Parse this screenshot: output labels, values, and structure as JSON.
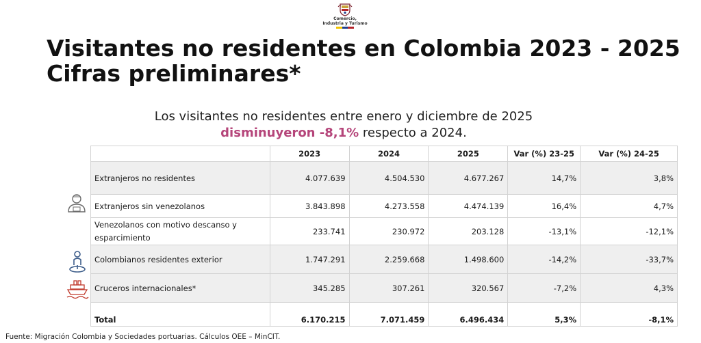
{
  "logo": {
    "line1": "Comercio,",
    "line2": "Industria y Turismo",
    "colors": {
      "red": "#b4232a",
      "yellow": "#f1c400",
      "blue": "#1d3f8f"
    }
  },
  "title": {
    "line1": "Visitantes no residentes en Colombia 2023 - 2025",
    "line2": "Cifras preliminares*"
  },
  "subtitle": {
    "line1": "Los visitantes no residentes entre enero y diciembre de 2025",
    "highlight": "disminuyeron -8,1%",
    "rest": " respecto a 2024.",
    "highlight_color": "#b5457a"
  },
  "table": {
    "headers": [
      "",
      "2023",
      "2024",
      "2025",
      "Var (%) 23-25",
      "Var (%) 24-25"
    ],
    "rows": [
      {
        "label": "Extranjeros no residentes",
        "values": [
          "4.077.639",
          "4.504.530",
          "4.677.267",
          "14,7%",
          "3,8%"
        ]
      },
      {
        "label": "Extranjeros sin venezolanos",
        "values": [
          "3.843.898",
          "4.273.558",
          "4.474.139",
          "16,4%",
          "4,7%"
        ]
      },
      {
        "label": "Venezolanos con motivo descanso y esparcimiento",
        "values": [
          "233.741",
          "230.972",
          "203.128",
          "-13,1%",
          "-12,1%"
        ]
      },
      {
        "label": "Colombianos residentes exterior",
        "values": [
          "1.747.291",
          "2.259.668",
          "1.498.600",
          "-14,2%",
          "-33,7%"
        ]
      },
      {
        "label": "Cruceros internacionales*",
        "values": [
          "345.285",
          "307.261",
          "320.567",
          "-7,2%",
          "4,3%"
        ]
      }
    ],
    "total": {
      "label": "Total",
      "values": [
        "6.170.215",
        "7.071.459",
        "6.496.434",
        "5,3%",
        "-8,1%"
      ]
    }
  },
  "icons": {
    "foreigner": "person-icon",
    "colombian": "location-person-icon",
    "cruise": "cruise-ship-icon",
    "color_gray": "#6b6b6b",
    "color_blue": "#3d5d8a",
    "color_red": "#c0392b"
  },
  "source": "Fuente: Migración Colombia y Sociedades portuarias. Cálculos OEE – MinCIT."
}
